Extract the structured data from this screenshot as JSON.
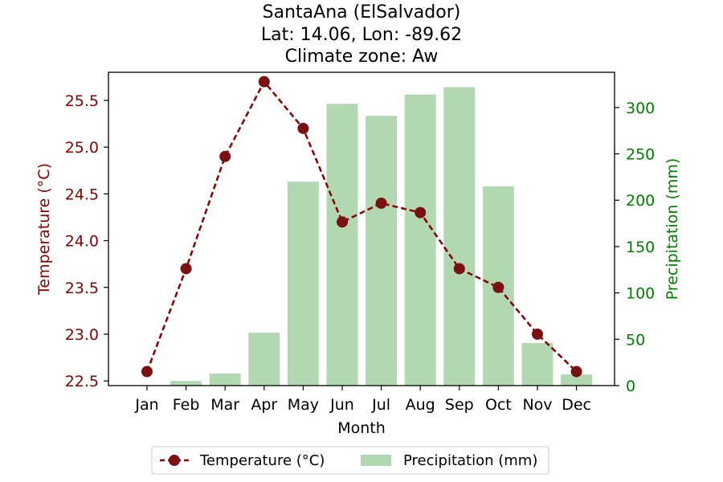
{
  "chart_data": {
    "type": "bar+line",
    "title": [
      "SantaAna (ElSalvador)",
      "Lat: 14.06, Lon: -89.62",
      "Climate zone: Aw"
    ],
    "xlabel": "Month",
    "categories": [
      "Jan",
      "Feb",
      "Mar",
      "Apr",
      "May",
      "Jun",
      "Jul",
      "Aug",
      "Sep",
      "Oct",
      "Nov",
      "Dec"
    ],
    "series": [
      {
        "name": "Temperature (°C)",
        "type": "line",
        "axis": "left",
        "values": [
          22.6,
          23.7,
          24.9,
          25.7,
          25.2,
          24.2,
          24.4,
          24.3,
          23.7,
          23.5,
          23.0,
          22.6
        ]
      },
      {
        "name": "Precipitation (mm)",
        "type": "bar",
        "axis": "right",
        "values": [
          0,
          5,
          13,
          57,
          220,
          304,
          291,
          314,
          322,
          215,
          46,
          12
        ]
      }
    ],
    "y_left": {
      "label": "Temperature (°C)",
      "range": [
        22.45,
        25.8
      ],
      "ticks": [
        "22.5",
        "23.0",
        "23.5",
        "24.0",
        "24.5",
        "25.0",
        "25.5"
      ]
    },
    "y_right": {
      "label": "Precipitation (mm)",
      "range": [
        0,
        338
      ],
      "ticks": [
        "0",
        "50",
        "100",
        "150",
        "200",
        "250",
        "300"
      ]
    },
    "legend": {
      "position": "bottom-center",
      "entries": [
        "Temperature (°C)",
        "Precipitation (mm)"
      ]
    },
    "colors": {
      "temperature": "#8b0000",
      "temperature_marker": "#7a1010",
      "precipitation": "#b2d8b2",
      "left_axis": "#8b0000",
      "right_axis": "#008000"
    },
    "grid": false
  }
}
